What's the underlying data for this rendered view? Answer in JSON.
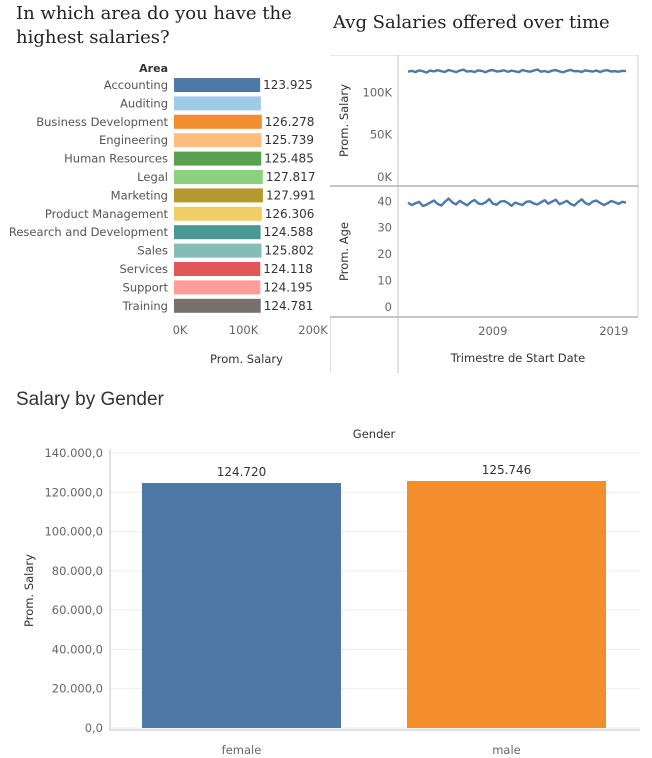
{
  "titles": {
    "area": "In which area do you have the highest salaries?",
    "time": "Avg Salaries offered over time",
    "gender": "Salary by Gender"
  },
  "chart_data": [
    {
      "type": "bar",
      "orientation": "horizontal",
      "title": "In which area do you have the highest salaries?",
      "category_header": "Area",
      "xlabel": "Prom. Salary",
      "xlim": [
        0,
        200000
      ],
      "xticks": [
        "0K",
        "100K",
        "200K"
      ],
      "categories": [
        "Accounting",
        "Auditing",
        "Business Development",
        "Engineering",
        "Human Resources",
        "Legal",
        "Marketing",
        "Product Management",
        "Research and Development",
        "Sales",
        "Services",
        "Support",
        "Training"
      ],
      "values": [
        123925,
        null,
        126278,
        125739,
        125485,
        127817,
        127991,
        126306,
        124588,
        125802,
        124118,
        124195,
        124781
      ],
      "labels": [
        "123.925",
        "",
        "126.278",
        "125.739",
        "125.485",
        "127.817",
        "127.991",
        "126.306",
        "124.588",
        "125.802",
        "124.118",
        "124.195",
        "124.781"
      ],
      "colors": [
        "#4e79a7",
        "#a0cbe8",
        "#f28e2b",
        "#ffbe7d",
        "#59a14f",
        "#8cd17d",
        "#b6992d",
        "#f1ce63",
        "#499894",
        "#86bcb6",
        "#e15759",
        "#ff9d9a",
        "#79706e"
      ]
    },
    {
      "type": "line",
      "title": "Avg Salaries offered over time",
      "xlabel": "Trimestre de Start Date",
      "xticks": [
        "2009",
        "2019"
      ],
      "x_range": [
        2001,
        2022
      ],
      "color": "#4e79a7",
      "panels": [
        {
          "ylabel": "Prom. Salary",
          "ylim": [
            0,
            130000
          ],
          "yticks": [
            "100K",
            "50K",
            "0K"
          ],
          "values": [
            124500,
            125500,
            124000,
            126000,
            125000,
            123500,
            125800,
            124800,
            126200,
            125000,
            124200,
            126500,
            125300,
            124000,
            125700,
            126800,
            124600,
            125200,
            124100,
            126000,
            125400,
            123800,
            125900,
            126300,
            124700,
            125100,
            126100,
            124300,
            125600,
            124900,
            123900,
            126400,
            125200,
            124500,
            125800,
            127000,
            124400,
            125300,
            124000,
            125700,
            126200,
            124800,
            123700,
            125500,
            126600,
            124900,
            125100,
            124200,
            126000,
            125300,
            124600,
            125900,
            124100,
            125600,
            126200,
            124700,
            125000,
            124400,
            125500,
            125200
          ]
        },
        {
          "ylabel": "Prom. Age",
          "ylim": [
            0,
            42
          ],
          "yticks": [
            "40",
            "30",
            "20",
            "10",
            "0"
          ],
          "values": [
            39.5,
            38.6,
            39.2,
            39.8,
            38.2,
            38.7,
            39.5,
            40.3,
            39.0,
            38.4,
            39.8,
            41.0,
            39.6,
            38.8,
            40.2,
            39.3,
            38.5,
            39.7,
            40.5,
            39.2,
            38.9,
            39.6,
            40.8,
            39.1,
            38.7,
            39.9,
            40.1,
            39.4,
            38.3,
            39.5,
            39.0,
            38.6,
            39.8,
            40.0,
            39.2,
            38.8,
            39.6,
            40.4,
            39.1,
            39.9,
            40.6,
            38.9,
            39.5,
            40.2,
            39.0,
            38.4,
            39.7,
            40.7,
            39.3,
            38.8,
            39.9,
            40.3,
            39.4,
            38.6,
            39.2,
            40.1,
            39.6,
            39.0,
            39.8,
            39.5
          ]
        }
      ]
    },
    {
      "type": "bar",
      "title": "Salary by Gender",
      "header": "Gender",
      "ylabel": "Prom. Salary",
      "ylim": [
        0,
        140000
      ],
      "yticks": [
        "140.000,0",
        "120.000,0",
        "100.000,0",
        "80.000,0",
        "60.000,0",
        "40.000,0",
        "20.000,0",
        "0,0"
      ],
      "categories": [
        "female",
        "male"
      ],
      "values": [
        124720,
        125746
      ],
      "labels": [
        "124.720",
        "125.746"
      ],
      "colors": [
        "#4e79a7",
        "#f28e2b"
      ]
    }
  ]
}
